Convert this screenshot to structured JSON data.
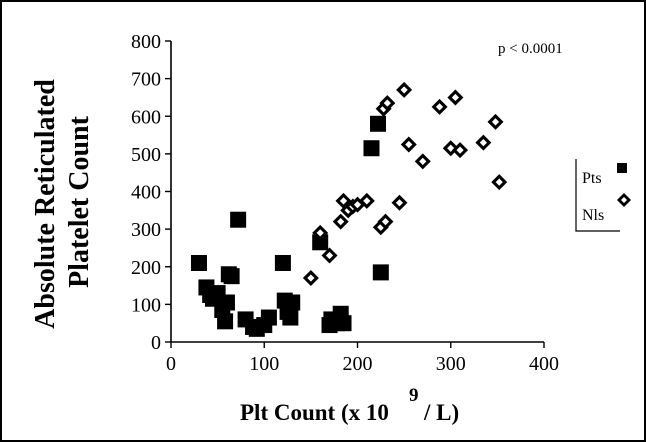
{
  "chart_data": {
    "type": "scatter",
    "title": "",
    "xlabel_main": "Plt Count (x 10",
    "xlabel_exp": "9",
    "xlabel_tail": "/ L)",
    "ylabel_line1": "Absolute Reticulated",
    "ylabel_line2": "Platelet Count",
    "annotation": "p < 0.0001",
    "xlim": [
      0,
      400
    ],
    "ylim": [
      0,
      800
    ],
    "x_ticks": [
      0,
      100,
      200,
      300,
      400
    ],
    "y_ticks": [
      0,
      100,
      200,
      300,
      400,
      500,
      600,
      700,
      800
    ],
    "grid": false,
    "legend_position": "right",
    "series": [
      {
        "name": "Pts",
        "marker": "filled-square",
        "color": "#000000",
        "points": [
          [
            30,
            210
          ],
          [
            38,
            145
          ],
          [
            42,
            125
          ],
          [
            45,
            115
          ],
          [
            50,
            130
          ],
          [
            55,
            85
          ],
          [
            58,
            55
          ],
          [
            60,
            105
          ],
          [
            62,
            180
          ],
          [
            65,
            175
          ],
          [
            72,
            325
          ],
          [
            80,
            60
          ],
          [
            88,
            40
          ],
          [
            92,
            35
          ],
          [
            100,
            45
          ],
          [
            105,
            65
          ],
          [
            120,
            210
          ],
          [
            122,
            110
          ],
          [
            125,
            80
          ],
          [
            128,
            65
          ],
          [
            130,
            105
          ],
          [
            160,
            265
          ],
          [
            170,
            45
          ],
          [
            172,
            60
          ],
          [
            178,
            50
          ],
          [
            182,
            75
          ],
          [
            185,
            50
          ],
          [
            215,
            515
          ],
          [
            222,
            580
          ],
          [
            225,
            185
          ]
        ]
      },
      {
        "name": "Nls",
        "marker": "open-diamond",
        "color": "#000000",
        "points": [
          [
            150,
            170
          ],
          [
            160,
            290
          ],
          [
            170,
            230
          ],
          [
            182,
            320
          ],
          [
            185,
            375
          ],
          [
            190,
            350
          ],
          [
            195,
            360
          ],
          [
            200,
            365
          ],
          [
            210,
            375
          ],
          [
            225,
            305
          ],
          [
            228,
            620
          ],
          [
            230,
            320
          ],
          [
            232,
            635
          ],
          [
            245,
            370
          ],
          [
            250,
            670
          ],
          [
            255,
            525
          ],
          [
            270,
            480
          ],
          [
            288,
            625
          ],
          [
            300,
            515
          ],
          [
            305,
            650
          ],
          [
            310,
            510
          ],
          [
            335,
            530
          ],
          [
            348,
            585
          ],
          [
            352,
            425
          ]
        ]
      }
    ]
  }
}
